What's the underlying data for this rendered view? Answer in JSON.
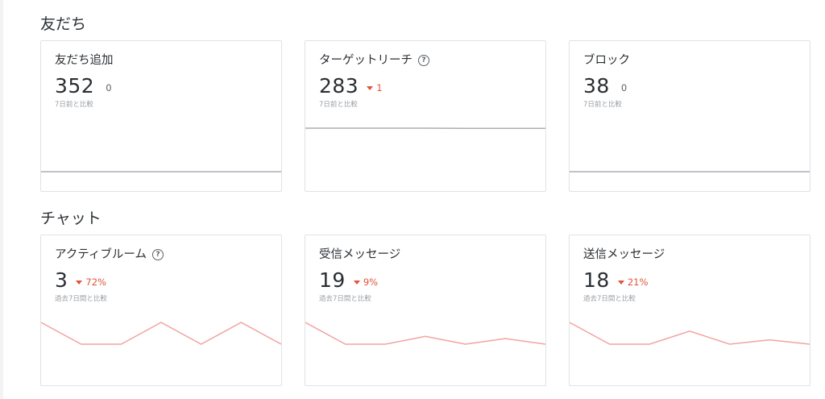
{
  "sections": [
    {
      "title": "友だち",
      "cards": [
        {
          "title": "友だち追加",
          "help": false,
          "value": "352",
          "delta": "0",
          "trend": "neutral",
          "caption": "7日前と比較",
          "series": [
            0,
            0,
            0,
            0,
            0,
            0,
            0
          ],
          "series_max": 1
        },
        {
          "title": "ターゲットリーチ",
          "help": true,
          "value": "283",
          "delta": "1",
          "trend": "down",
          "caption": "7日前と比較",
          "series": [
            284,
            284,
            284,
            284,
            283,
            283,
            283
          ],
          "series_max": 284
        },
        {
          "title": "ブロック",
          "help": false,
          "value": "38",
          "delta": "0",
          "trend": "neutral",
          "caption": "7日前と比較",
          "series": [
            0,
            0,
            0,
            0,
            0,
            0,
            0
          ],
          "series_max": 1
        }
      ]
    },
    {
      "title": "チャット",
      "cards": [
        {
          "title": "アクティブルーム",
          "help": true,
          "value": "3",
          "delta": "72%",
          "trend": "down",
          "caption": "過去7日間と比較",
          "series": [
            2,
            1,
            1,
            2,
            1,
            2,
            1
          ],
          "series_max": 2
        },
        {
          "title": "受信メッセージ",
          "help": false,
          "value": "19",
          "delta": "9%",
          "trend": "down",
          "caption": "過去7日間と比較",
          "series": [
            2,
            1,
            1,
            1.36,
            1,
            1.26,
            1
          ],
          "series_max": 2
        },
        {
          "title": "送信メッセージ",
          "help": false,
          "value": "18",
          "delta": "21%",
          "trend": "down",
          "caption": "過去7日間と比較",
          "series": [
            2,
            1,
            1,
            1.6,
            1,
            1.2,
            1
          ],
          "series_max": 2
        }
      ]
    }
  ],
  "icons": {
    "help": "help-circle-icon",
    "down": "caret-down-icon"
  },
  "colors": {
    "gray_line": "#a8aeb6",
    "red_line": "#f2a3a3",
    "down": "#e0533c"
  }
}
